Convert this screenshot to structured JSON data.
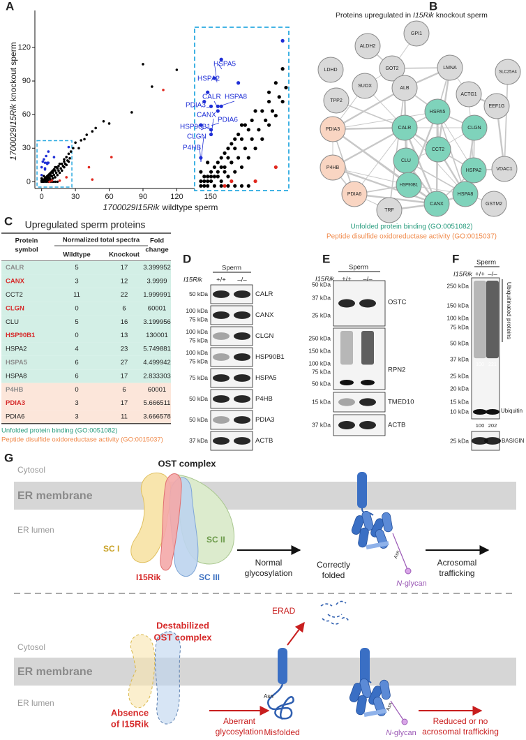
{
  "panel_a": {
    "letter": "A",
    "chart": {
      "type": "scatter",
      "x_label": {
        "italic": "1700029I15Rik",
        "plain": "wildtype sperm"
      },
      "y_label": {
        "italic": "1700029I15Rik",
        "plain": "knockout sperm"
      },
      "xlim": [
        -6,
        217
      ],
      "ylim": [
        -6,
        153
      ],
      "xticks": [
        0,
        30,
        60,
        90,
        120,
        150
      ],
      "yticks": [
        0,
        30,
        60,
        90,
        120
      ],
      "inset_xlim": [
        -1,
        25
      ],
      "inset_ylim": [
        -1,
        33
      ],
      "series": [
        {
          "color": "#000000",
          "x": [
            90,
            120,
            98,
            80,
            60,
            55,
            48,
            45,
            40,
            38,
            35,
            30,
            33,
            28,
            26,
            24,
            22,
            20,
            20,
            18,
            16,
            15,
            14,
            12,
            12,
            10,
            10,
            8,
            8,
            6,
            6,
            4,
            4,
            2,
            2,
            1,
            0,
            1,
            0,
            3,
            5,
            7,
            9,
            11,
            13,
            15,
            17,
            19,
            21,
            23,
            25,
            16,
            14,
            12,
            10,
            8,
            6,
            11,
            13,
            9,
            7,
            5,
            3,
            18,
            20,
            22,
            24,
            2,
            4,
            6,
            8,
            10,
            12,
            14,
            1,
            3,
            5,
            7,
            9,
            0,
            2
          ],
          "y": [
            105,
            100,
            85,
            62,
            52,
            54,
            48,
            45,
            42,
            38,
            37,
            35,
            30,
            30,
            27,
            25,
            22,
            20,
            18,
            16,
            16,
            14,
            12,
            13,
            10,
            10,
            8,
            8,
            6,
            6,
            4,
            4,
            2,
            2,
            1,
            1,
            0,
            0,
            1,
            3,
            5,
            7,
            9,
            11,
            13,
            10,
            12,
            14,
            16,
            19,
            21,
            8,
            6,
            4,
            3,
            2,
            1,
            6,
            8,
            5,
            3,
            2,
            1,
            10,
            13,
            15,
            18,
            0,
            0,
            0,
            0,
            0,
            0,
            0,
            2,
            2,
            3,
            4,
            5,
            3,
            5
          ]
        },
        {
          "color": "#1f2fd6",
          "x": [
            5,
            3,
            11,
            0,
            5,
            0,
            4,
            6,
            6,
            3,
            3,
            24,
            2,
            1
          ],
          "y": [
            17,
            12,
            22,
            6,
            16,
            13,
            23,
            27,
            17,
            17,
            11,
            31,
            20,
            18
          ]
        },
        {
          "color": "#e0281e",
          "x": [
            108,
            42,
            62,
            45,
            9,
            7,
            16,
            22
          ],
          "y": [
            82,
            13,
            22,
            2,
            1,
            0,
            1,
            4
          ]
        }
      ],
      "annotations": [
        "HSPA5",
        "HSPA2",
        "CALR",
        "HSPA8",
        "PDIA3",
        "CANX",
        "PDIA6",
        "HSP90B1",
        "CLGN",
        "P4HB"
      ]
    }
  },
  "panel_b": {
    "letter": "B",
    "title": {
      "before": "Proteins upregulated in",
      "italic": "I15Rik",
      "after": "knockout sperm"
    },
    "nodes": [
      {
        "label": "GPI1",
        "color": "#d9d9d9"
      },
      {
        "label": "ALDH2",
        "color": "#d9d9d9"
      },
      {
        "label": "GOT2",
        "color": "#d9d9d9"
      },
      {
        "label": "LDHD",
        "color": "#d9d9d9"
      },
      {
        "label": "LMNA",
        "color": "#d9d9d9"
      },
      {
        "label": "SLC25A4",
        "color": "#d9d9d9"
      },
      {
        "label": "SUOX",
        "color": "#d9d9d9"
      },
      {
        "label": "ALB",
        "color": "#d9d9d9"
      },
      {
        "label": "ACTG1",
        "color": "#d9d9d9"
      },
      {
        "label": "TPP2",
        "color": "#d9d9d9"
      },
      {
        "label": "EEF1G",
        "color": "#d9d9d9"
      },
      {
        "label": "HSPA5",
        "color": "#7fd3bb"
      },
      {
        "label": "PDIA3",
        "color": "#f9d5c2"
      },
      {
        "label": "CALR",
        "color": "#7fd3bb"
      },
      {
        "label": "CLGN",
        "color": "#7fd3bb"
      },
      {
        "label": "CCT2",
        "color": "#7fd3bb"
      },
      {
        "label": "CLU",
        "color": "#7fd3bb"
      },
      {
        "label": "HSPA2",
        "color": "#7fd3bb"
      },
      {
        "label": "VDAC1",
        "color": "#d9d9d9"
      },
      {
        "label": "P4HB",
        "color": "#f9d5c2"
      },
      {
        "label": "HSPA8",
        "color": "#7fd3bb"
      },
      {
        "label": "HSP90B1",
        "color": "#7fd3bb"
      },
      {
        "label": "GSTM2",
        "color": "#d9d9d9"
      },
      {
        "label": "PDIA6",
        "color": "#f9d5c2"
      },
      {
        "label": "CANX",
        "color": "#7fd3bb"
      },
      {
        "label": "TRF",
        "color": "#d9d9d9"
      }
    ],
    "legend": [
      {
        "text": "Unfolded protein binding (GO:0051082)",
        "color": "#2a9d7f"
      },
      {
        "text": "Peptide disulfide oxidoreductase activity (GO:0015037)",
        "color": "#f08a4b"
      }
    ]
  },
  "panel_c": {
    "letter": "C",
    "title": "Upregulated sperm proteins",
    "header": {
      "symbol": [
        "Protein",
        "symbol"
      ],
      "spectra": "Normalized total spectra",
      "wildtype": "Wildtype",
      "knockout": "Knockout",
      "fold": [
        "Fold",
        "change"
      ]
    },
    "rows": [
      {
        "symbol": "CALR",
        "symbol_color": "#8c8c8c",
        "wildtype": 5,
        "knockout": 17,
        "fold_change": 3.399952,
        "background": "#d3efe6"
      },
      {
        "symbol": "CANX",
        "symbol_color": "#d62b2b",
        "wildtype": 3,
        "knockout": 12,
        "fold_change": 3.9999,
        "background": "#d3efe6"
      },
      {
        "symbol": "CCT2",
        "symbol_color": "#222222",
        "wildtype": 11,
        "knockout": 22,
        "fold_change": 1.999991,
        "background": "#d3efe6"
      },
      {
        "symbol": "CLGN",
        "symbol_color": "#d62b2b",
        "wildtype": 0,
        "knockout": 6,
        "fold_change": 60001,
        "background": "#d3efe6"
      },
      {
        "symbol": "CLU",
        "symbol_color": "#222222",
        "wildtype": 5,
        "knockout": 16,
        "fold_change": 3.199956,
        "background": "#d3efe6"
      },
      {
        "symbol": "HSP90B1",
        "symbol_color": "#d62b2b",
        "wildtype": 0,
        "knockout": 13,
        "fold_change": 130001,
        "background": "#d3efe6"
      },
      {
        "symbol": "HSPA2",
        "symbol_color": "#222222",
        "wildtype": 4,
        "knockout": 23,
        "fold_change": 5.749881,
        "background": "#d3efe6"
      },
      {
        "symbol": "HSPA5",
        "symbol_color": "#8c8c8c",
        "wildtype": 6,
        "knockout": 27,
        "fold_change": 4.499942,
        "background": "#d3efe6"
      },
      {
        "symbol": "HSPA8",
        "symbol_color": "#222222",
        "wildtype": 6,
        "knockout": 17,
        "fold_change": 2.833303,
        "background": "#d3efe6"
      },
      {
        "symbol": "P4HB",
        "symbol_color": "#8c8c8c",
        "wildtype": 0,
        "knockout": 6,
        "fold_change": 60001,
        "background": "#fce6da"
      },
      {
        "symbol": "PDIA3",
        "symbol_color": "#d62b2b",
        "wildtype": 3,
        "knockout": 17,
        "fold_change": 5.666511,
        "background": "#fce6da"
      },
      {
        "symbol": "PDIA6",
        "symbol_color": "#222222",
        "wildtype": 3,
        "knockout": 11,
        "fold_change": 3.666578,
        "background": "#fce6da"
      }
    ],
    "legend": [
      {
        "text": "Unfolded protein binding (GO:0051082)",
        "color": "#2a9d7f"
      },
      {
        "text": "Peptide disulfide oxidoreductase activity (GO:0015037)",
        "color": "#f08a4b"
      }
    ]
  },
  "panel_d": {
    "letter": "D",
    "group": "Sperm",
    "genotype_label": "I15Rik",
    "lanes": [
      "+/+",
      "–/–"
    ],
    "blots": [
      {
        "markers": [
          "50 kDa"
        ],
        "protein": "CALR"
      },
      {
        "markers": [
          "100 kDa",
          "75 kDa"
        ],
        "protein": "CANX"
      },
      {
        "markers": [
          "100 kDa",
          "75 kDa"
        ],
        "protein": "CLGN"
      },
      {
        "markers": [
          "100 kDa",
          "75 kDa"
        ],
        "protein": "HSP90B1"
      },
      {
        "markers": [
          "75 kDa"
        ],
        "protein": "HSPA5"
      },
      {
        "markers": [
          "50 kDa"
        ],
        "protein": "P4HB"
      },
      {
        "markers": [
          "50 kDa"
        ],
        "protein": "PDIA3"
      },
      {
        "markers": [
          "37 kDa"
        ],
        "protein": "ACTB"
      }
    ]
  },
  "panel_e": {
    "letter": "E",
    "group": "Sperm",
    "genotype_label": "I15Rik",
    "lanes": [
      "+/+",
      "–/–"
    ],
    "blots": [
      {
        "markers": [
          "50 kDa",
          "37 kDa",
          "25 kDa"
        ],
        "protein": "OSTC"
      },
      {
        "markers": [
          "250 kDa",
          "150 kDa",
          "100 kDa",
          "75 kDa",
          "50 kDa"
        ],
        "protein": "RPN2"
      },
      {
        "markers": [
          "15 kDa"
        ],
        "protein": "TMED10"
      },
      {
        "markers": [
          "37 kDa"
        ],
        "protein": "ACTB"
      }
    ]
  },
  "panel_f": {
    "letter": "F",
    "group": "Sperm",
    "genotype_label": "I15Rik",
    "lanes": [
      "+/+",
      "–/–"
    ],
    "main_blot": {
      "markers": [
        "250 kDa",
        "150 kDa",
        "100 kDa",
        "75 kDa",
        "50 kDa",
        "37 kDa",
        "25 kDa",
        "20 kDa",
        "15 kDa",
        "10 kDa"
      ],
      "bracket_label": "Ubiquitinated proteins",
      "band_label": "Ubiquitin",
      "inner_values": [
        100,
        221
      ],
      "lower_values": [
        100,
        202
      ]
    },
    "loading_blot": {
      "markers": [
        "25 kDa"
      ],
      "protein": "BASIGIN"
    }
  },
  "panel_g": {
    "letter": "G",
    "normal": {
      "cytosol": "Cytosol",
      "membrane": "ER membrane",
      "lumen": "ER lumen",
      "complex": "OST complex",
      "sc1": "SC I",
      "sc2": "SC II",
      "sc3": "SC III",
      "i15rik": "I15Rik",
      "step": [
        "Normal",
        "glycosylation"
      ],
      "asn": "Asn",
      "state": [
        "Correctly",
        "folded"
      ],
      "glycan": {
        "italic": "N",
        "rest": "-glycan"
      },
      "outcome": [
        "Acrosomal",
        "trafficking"
      ]
    },
    "defect": {
      "complex": [
        "Destabilized",
        "OST complex"
      ],
      "cytosol": "Cytosol",
      "membrane": "ER membrane",
      "lumen": "ER lumen",
      "absence": [
        "Absence",
        "of I15Rik"
      ],
      "erad": "ERAD",
      "step": [
        "Aberrant",
        "glycosylation"
      ],
      "asn_misfolded": "Asn",
      "asn_folded": "Asn",
      "state": "Misfolded",
      "glycan": {
        "italic": "N",
        "rest": "-glycan"
      },
      "outcome": [
        "Reduced or no",
        "acrosomal trafficking"
      ]
    }
  }
}
